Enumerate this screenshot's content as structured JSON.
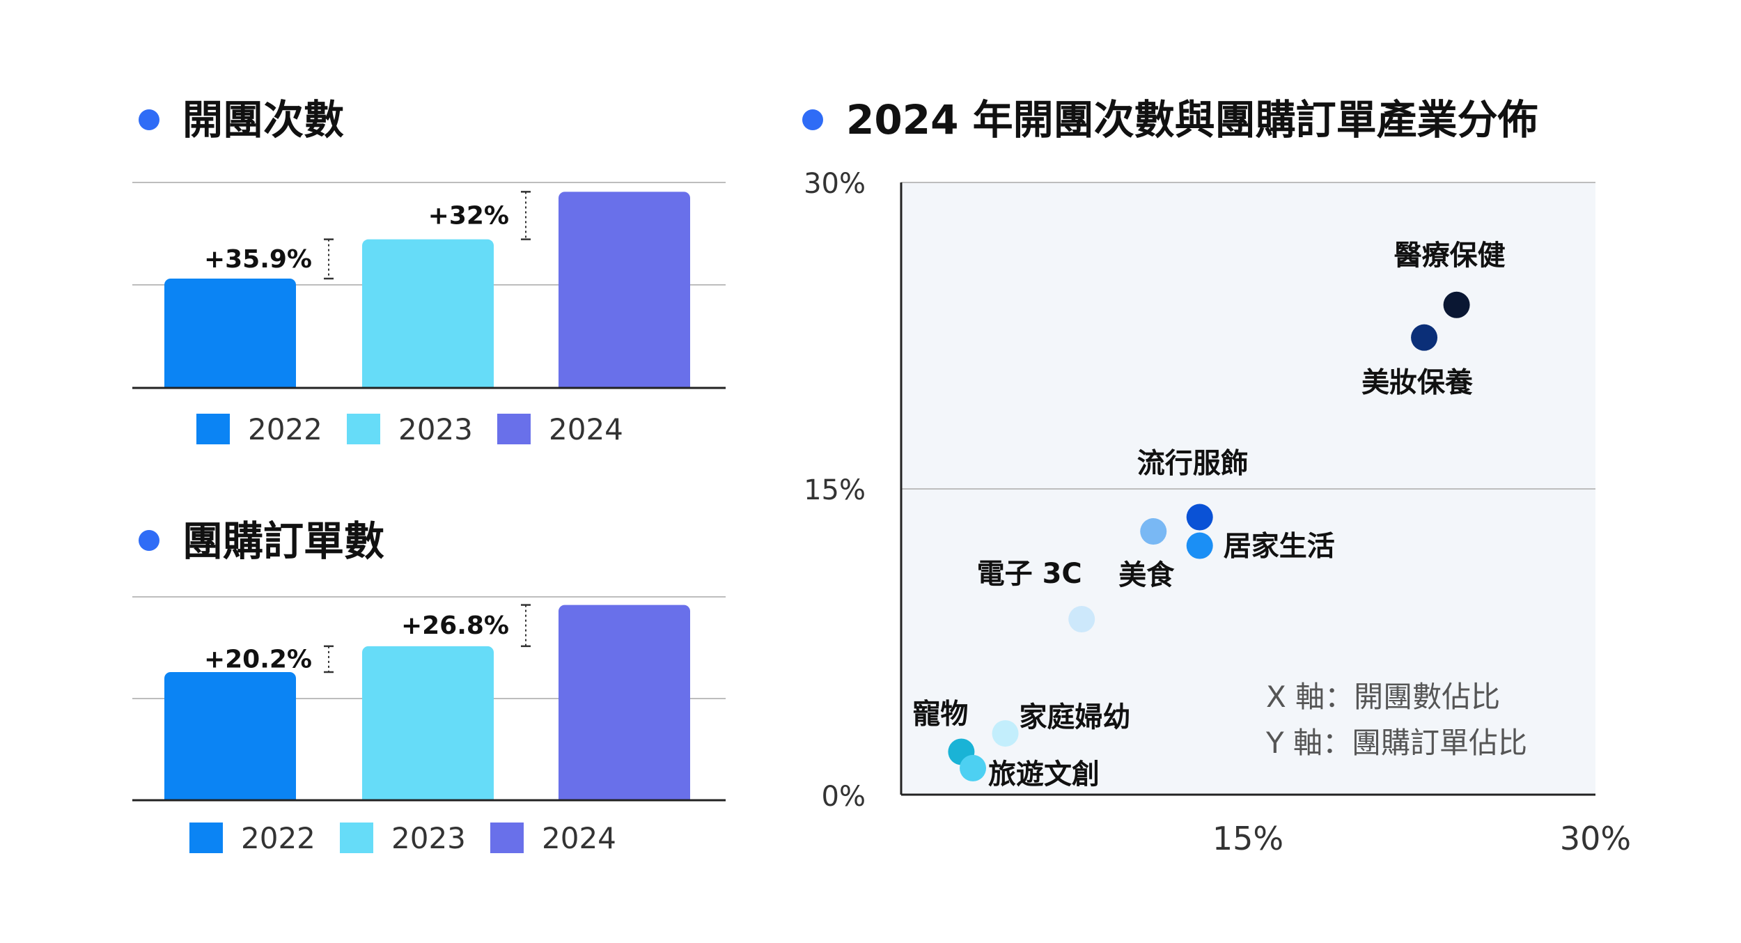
{
  "colors": {
    "bullet": "#2f6cf6",
    "y2022": "#0b84f4",
    "y2023": "#66dcf8",
    "y2024": "#6970ea",
    "grid": "#bdbdbd",
    "axis": "#222222",
    "plot_bg": "#f3f6fa"
  },
  "chart_data": [
    {
      "type": "bar",
      "title": "開團次數",
      "categories": [
        "2022",
        "2023",
        "2024"
      ],
      "values": [
        100,
        135.9,
        179.4
      ],
      "growth_labels": [
        "+35.9%",
        "+32%"
      ],
      "legend": [
        "2022",
        "2023",
        "2024"
      ],
      "grid": true,
      "legend_position": "bottom"
    },
    {
      "type": "bar",
      "title": "團購訂單數",
      "categories": [
        "2022",
        "2023",
        "2024"
      ],
      "values": [
        100,
        120.2,
        152.4
      ],
      "growth_labels": [
        "+20.2%",
        "+26.8%"
      ],
      "legend": [
        "2022",
        "2023",
        "2024"
      ],
      "grid": true,
      "legend_position": "bottom"
    },
    {
      "type": "scatter",
      "title": "2024 年開團次數與團購訂單產業分佈",
      "xlim": [
        0,
        30
      ],
      "ylim": [
        0,
        30
      ],
      "x_ticks": [
        "15%",
        "30%"
      ],
      "y_ticks": [
        "30%",
        "15%",
        "0%"
      ],
      "grid": true,
      "notes": [
        "X 軸：開團數佔比",
        "Y 軸：團購訂單佔比"
      ],
      "points": [
        {
          "label": "醫療保健",
          "x": 24,
          "y": 24,
          "color": "#0a1733"
        },
        {
          "label": "美妝保養",
          "x": 22.6,
          "y": 22.4,
          "color": "#0b2f78"
        },
        {
          "label": "流行服飾",
          "x": 12.9,
          "y": 13.6,
          "color": "#0a52d6"
        },
        {
          "label": "居家生活",
          "x": 12.9,
          "y": 12.2,
          "color": "#1b8ff5"
        },
        {
          "label": "美食",
          "x": 10.9,
          "y": 12.9,
          "color": "#79b8f4"
        },
        {
          "label": "電子 3C",
          "x": 7.8,
          "y": 8.6,
          "color": "#cde8fb"
        },
        {
          "label": "家庭婦幼",
          "x": 4.5,
          "y": 3.0,
          "color": "#c3eefc"
        },
        {
          "label": "寵物",
          "x": 2.6,
          "y": 2.1,
          "color": "#1ab3d6"
        },
        {
          "label": "旅遊文創",
          "x": 3.1,
          "y": 1.3,
          "color": "#4dd0f2"
        }
      ]
    }
  ]
}
